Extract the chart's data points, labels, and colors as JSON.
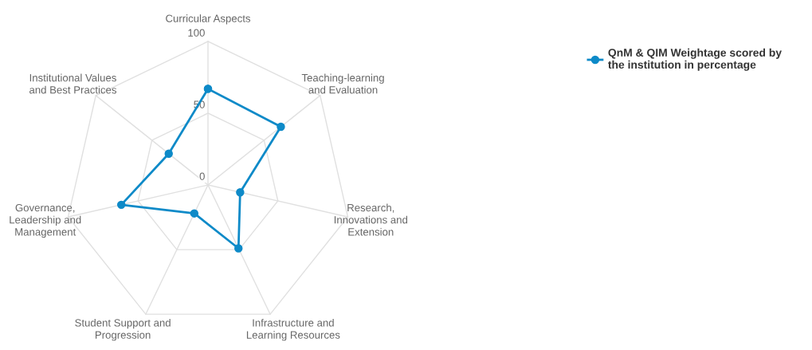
{
  "chart_data": {
    "type": "radar",
    "categories": [
      "Curricular Aspects",
      "Teaching-learning\nand Evaluation",
      "Research,\nInnovations and\nExtension",
      "Infrastructure and\nLearning Resources",
      "Student Support and\nProgression",
      "Governance,\nLeadership and\nManagement",
      "Institutional Values\nand Best Practices"
    ],
    "series": [
      {
        "name": "QnM & QIM Weightage scored by the institution in percentage",
        "color": "#0e8ac8",
        "values": [
          67,
          65,
          23,
          49,
          22,
          62,
          35
        ]
      }
    ],
    "ylim": [
      0,
      100
    ],
    "yticks": [
      0,
      50,
      100
    ],
    "grid": true,
    "legend": "top right",
    "marker": "circle",
    "line_style": "solid"
  }
}
